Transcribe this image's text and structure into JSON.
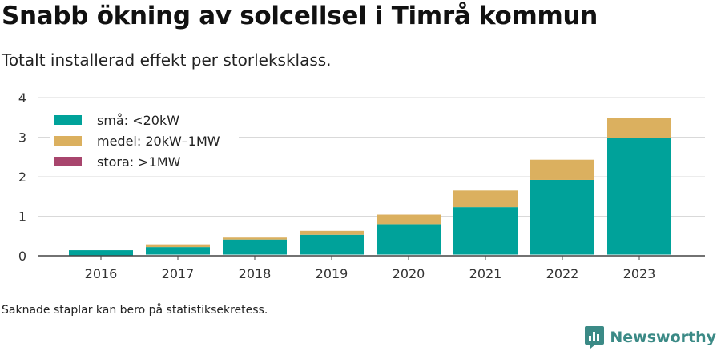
{
  "title": "Snabb ökning av solcellsel i Timrå kommun",
  "subtitle": "Totalt installerad effekt per storleksklass.",
  "footnote": "Saknade staplar kan bero på statistiksekretess.",
  "brand": "Newsworthy",
  "chart_data": {
    "type": "bar",
    "stacked": true,
    "categories": [
      "2016",
      "2017",
      "2018",
      "2019",
      "2020",
      "2021",
      "2022",
      "2023"
    ],
    "series": [
      {
        "name": "små: <20kW",
        "color": "#00a29a",
        "values": [
          0.14,
          0.22,
          0.41,
          0.53,
          0.8,
          1.23,
          1.92,
          2.97
        ]
      },
      {
        "name": "medel: 20kW–1MW",
        "color": "#dbb05f",
        "values": [
          0.0,
          0.07,
          0.05,
          0.1,
          0.24,
          0.42,
          0.51,
          0.51
        ]
      },
      {
        "name": "stora: >1MW",
        "color": "#a8456d",
        "values": [
          0,
          0,
          0,
          0,
          0,
          0,
          0,
          0
        ]
      }
    ],
    "yticks": [
      0,
      1,
      2,
      3,
      4
    ],
    "ylim": [
      0,
      4
    ],
    "grid": true,
    "legend_position": "top-left"
  }
}
